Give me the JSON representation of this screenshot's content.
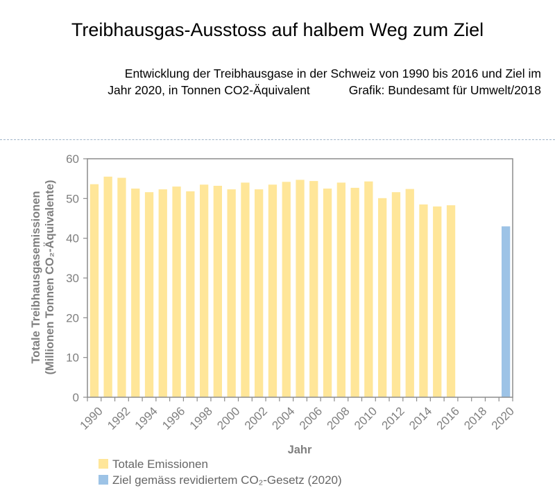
{
  "header": {
    "title": "Treibhausgas-Ausstoss auf halbem Weg zum Ziel",
    "subtitle_line1": "Entwicklung der Treibhausgase in der Schweiz von 1990 bis 2016 und Ziel im",
    "subtitle_line2": "Jahr 2020, in Tonnen CO2-Äquivalent",
    "credit": "Grafik: Bundesamt für Umwelt/2018"
  },
  "chart_data": {
    "type": "bar",
    "xlabel": "Jahr",
    "ylabel_line1": "Totale Treibhausgasemissionen",
    "ylabel_line2": "(Millionen Tonnen CO₂-Äquivalente)",
    "ylim": [
      0,
      60
    ],
    "yticks": [
      "0",
      "10",
      "20",
      "30",
      "40",
      "50",
      "60"
    ],
    "xticks": [
      "1990",
      "1992",
      "1994",
      "1996",
      "1998",
      "2000",
      "2002",
      "2004",
      "2006",
      "2008",
      "2010",
      "2012",
      "2014",
      "2016",
      "2018",
      "2020"
    ],
    "grid": false,
    "legend_position": "bottom",
    "series": [
      {
        "name": "Totale Emissionen",
        "color": "#ffe699",
        "x": [
          1990,
          1991,
          1992,
          1993,
          1994,
          1995,
          1996,
          1997,
          1998,
          1999,
          2000,
          2001,
          2002,
          2003,
          2004,
          2005,
          2006,
          2007,
          2008,
          2009,
          2010,
          2011,
          2012,
          2013,
          2014,
          2015,
          2016
        ],
        "values": [
          53.6,
          55.5,
          55.2,
          52.5,
          51.6,
          52.3,
          53.0,
          51.8,
          53.5,
          53.2,
          52.3,
          54.0,
          52.3,
          53.5,
          54.2,
          54.7,
          54.4,
          52.5,
          54.0,
          52.7,
          54.3,
          50.1,
          51.6,
          52.4,
          48.5,
          48.0,
          48.3
        ]
      },
      {
        "name": "Ziel gemäss revidiertem CO₂-Gesetz (2020)",
        "color": "#9dc3e6",
        "x": [
          2020
        ],
        "values": [
          43.0
        ]
      }
    ]
  }
}
